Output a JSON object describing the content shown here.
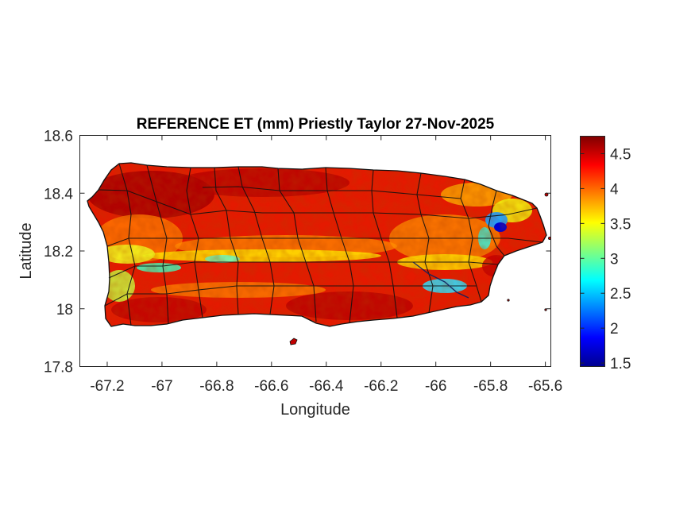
{
  "figure": {
    "title": "REFERENCE ET (mm) Priestly Taylor 27-Nov-2025",
    "xlabel": "Longitude",
    "ylabel": "Latitude"
  },
  "map": {
    "xlim": [
      -67.3,
      -65.58
    ],
    "ylim": [
      17.8,
      18.6
    ],
    "xticks": [
      {
        "value": -67.2,
        "label": "-67.2"
      },
      {
        "value": -67.0,
        "label": "-67"
      },
      {
        "value": -66.8,
        "label": "-66.8"
      },
      {
        "value": -66.6,
        "label": "-66.6"
      },
      {
        "value": -66.4,
        "label": "-66.4"
      },
      {
        "value": -66.2,
        "label": "-66.2"
      },
      {
        "value": -66.0,
        "label": "-66"
      },
      {
        "value": -65.8,
        "label": "-65.8"
      },
      {
        "value": -65.6,
        "label": "-65.6"
      }
    ],
    "yticks": [
      {
        "value": 17.8,
        "label": "17.8"
      },
      {
        "value": 18.0,
        "label": "18"
      },
      {
        "value": 18.2,
        "label": "18.2"
      },
      {
        "value": 18.4,
        "label": "18.4"
      },
      {
        "value": 18.6,
        "label": "18.6"
      }
    ]
  },
  "colorbar": {
    "range": [
      1.45,
      4.75
    ],
    "colormap": "jet",
    "ticks": [
      {
        "value": 1.5,
        "label": "1.5"
      },
      {
        "value": 2.0,
        "label": "2"
      },
      {
        "value": 2.5,
        "label": "2.5"
      },
      {
        "value": 3.0,
        "label": "3"
      },
      {
        "value": 3.5,
        "label": "3.5"
      },
      {
        "value": 4.0,
        "label": "4"
      },
      {
        "value": 4.5,
        "label": "4.5"
      }
    ]
  },
  "colors": {
    "axis": "#262626",
    "outline": "#111111",
    "background": "#ffffff",
    "jet_dark_red": "#7f0000",
    "jet_red": "#ff0000",
    "jet_orange": "#ff8000",
    "jet_yellow": "#ffff00",
    "jet_cyan": "#00ffff",
    "jet_blue": "#0000ff",
    "jet_dark_blue": "#00008f"
  }
}
